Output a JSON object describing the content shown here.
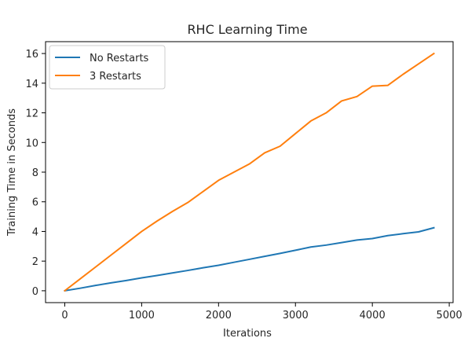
{
  "chart_data": {
    "type": "line",
    "title": "RHC Learning Time",
    "xlabel": "Iterations",
    "ylabel": "Training Time in Seconds",
    "xlim": [
      -250,
      5050
    ],
    "ylim": [
      -0.8,
      16.8
    ],
    "xticks": [
      0,
      1000,
      2000,
      3000,
      4000,
      5000
    ],
    "yticks": [
      0,
      2,
      4,
      6,
      8,
      10,
      12,
      14,
      16
    ],
    "grid": false,
    "legend_position": "upper-left",
    "series": [
      {
        "name": "No Restarts",
        "color": "#1f77b4",
        "x": [
          0,
          200,
          400,
          600,
          800,
          1000,
          1200,
          1400,
          1600,
          1800,
          2000,
          2200,
          2400,
          2600,
          2800,
          3000,
          3200,
          3400,
          3600,
          3800,
          4000,
          4200,
          4400,
          4600,
          4800
        ],
        "y": [
          0,
          0.17,
          0.36,
          0.53,
          0.69,
          0.87,
          1.03,
          1.2,
          1.37,
          1.55,
          1.72,
          1.92,
          2.12,
          2.32,
          2.52,
          2.73,
          2.95,
          3.08,
          3.25,
          3.42,
          3.52,
          3.72,
          3.85,
          3.97,
          4.25
        ]
      },
      {
        "name": "3 Restarts",
        "color": "#ff7f0e",
        "x": [
          0,
          200,
          400,
          600,
          800,
          1000,
          1200,
          1400,
          1600,
          1800,
          2000,
          2200,
          2400,
          2600,
          2800,
          3000,
          3200,
          3400,
          3600,
          3800,
          4000,
          4200,
          4400,
          4600,
          4800
        ],
        "y": [
          0,
          0.8,
          1.6,
          2.4,
          3.2,
          4.0,
          4.7,
          5.35,
          5.95,
          6.7,
          7.45,
          8.0,
          8.55,
          9.3,
          9.75,
          10.6,
          11.45,
          12.0,
          12.8,
          13.1,
          13.8,
          13.85,
          14.6,
          15.3,
          16.0
        ]
      }
    ]
  }
}
